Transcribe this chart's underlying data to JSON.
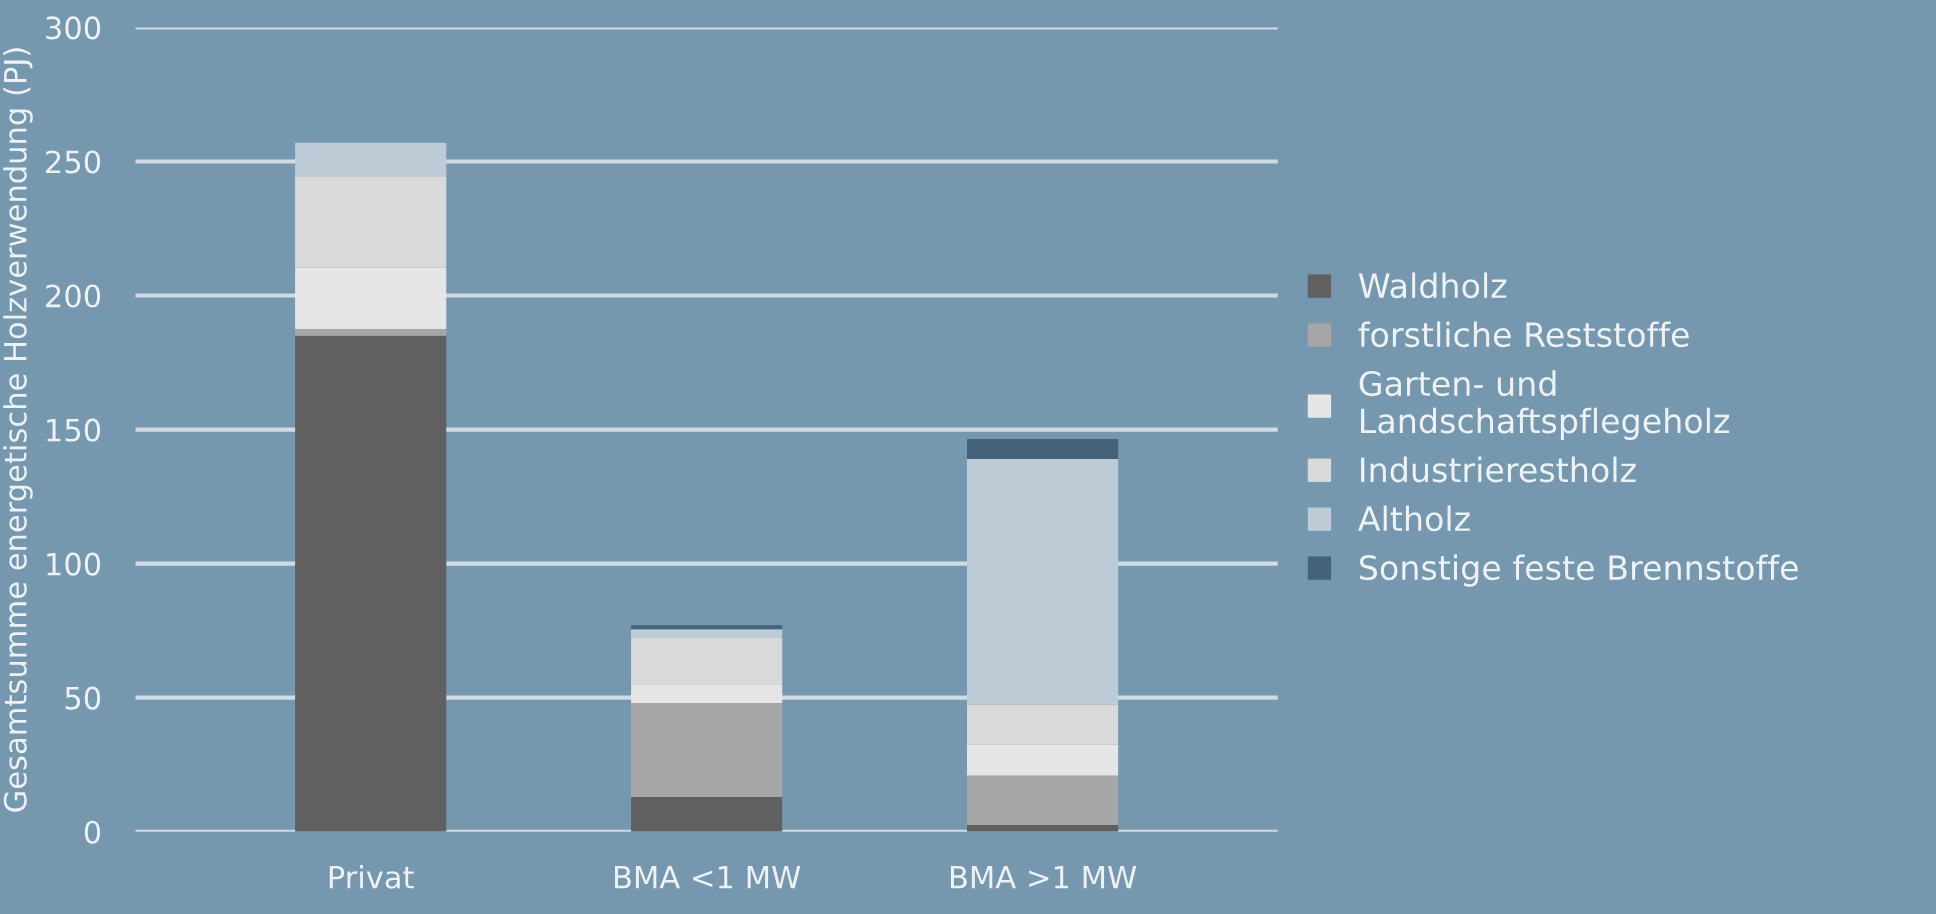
{
  "chart_data": {
    "type": "bar",
    "stacked": true,
    "ylabel": "Gesamtsumme energetische Holzverwendung (PJ)",
    "categories": [
      "Privat",
      "BMA <1 MW",
      "BMA >1 MW"
    ],
    "series": [
      {
        "name": "Waldholz",
        "color": "#606060",
        "values": [
          185,
          13,
          2.5
        ]
      },
      {
        "name": "forstliche Reststoffe",
        "color": "#a6a6a6",
        "values": [
          2.5,
          35,
          18.5
        ]
      },
      {
        "name": "Garten- und\nLandschaftspflegeholz",
        "color": "#e6e6e6",
        "values": [
          23,
          7,
          11.5
        ]
      },
      {
        "name": "Industrierestholz",
        "color": "#d9d9d9",
        "values": [
          34,
          17.5,
          15
        ]
      },
      {
        "name": "Altholz",
        "color": "#bccbd6",
        "values": [
          12.5,
          3,
          91.5
        ]
      },
      {
        "name": "Sonstige feste Brennstoffe",
        "color": "#44637b",
        "values": [
          0,
          1.5,
          7.5
        ]
      }
    ],
    "ylim": [
      0,
      300
    ],
    "yticks": [
      0,
      50,
      100,
      150,
      200,
      250,
      300
    ],
    "grid": "y",
    "legend": "right"
  }
}
